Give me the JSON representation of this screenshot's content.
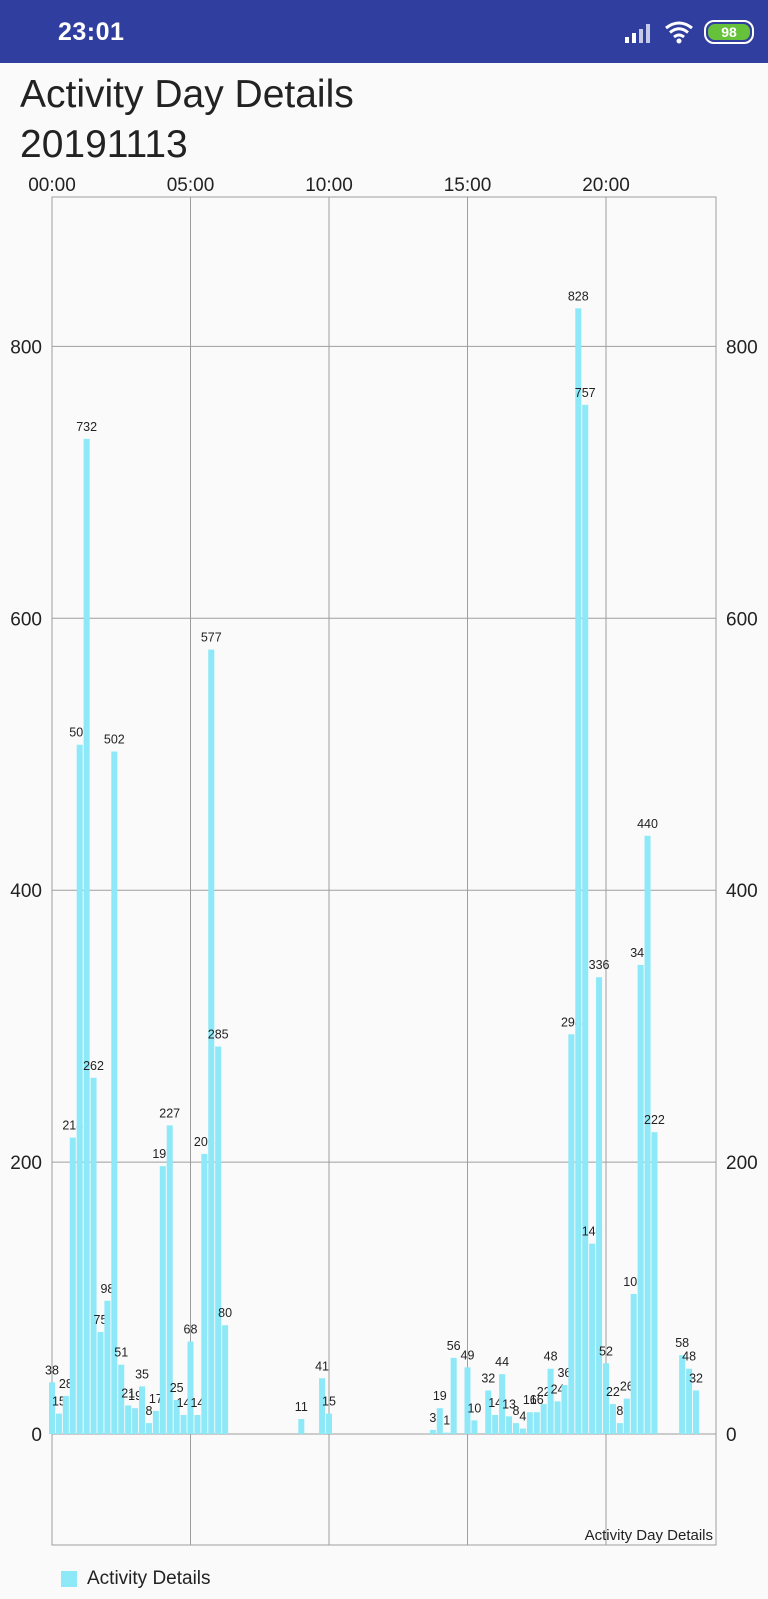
{
  "status_bar": {
    "time": "23:01",
    "battery": "98",
    "icons": [
      "signal-icon",
      "wifi-icon",
      "battery-icon"
    ]
  },
  "header": {
    "title": "Activity Day Details",
    "date": "20191113"
  },
  "legend": {
    "label": "Activity Details",
    "color": "#8de8f8"
  },
  "chart_data": {
    "type": "bar",
    "description": "Activity Day Details",
    "x_unit": "hour of day",
    "xlim": [
      0,
      24
    ],
    "ylim": [
      -80,
      890
    ],
    "x_ticks": [
      "00:00",
      "05:00",
      "10:00",
      "15:00",
      "20:00"
    ],
    "y_ticks": [
      "0",
      "200",
      "400",
      "600",
      "800"
    ],
    "bar_color": "#8de8f8",
    "series": [
      {
        "name": "Activity Details",
        "points": [
          {
            "x": 0.0,
            "y": 38
          },
          {
            "x": 0.25,
            "y": 15
          },
          {
            "x": 0.5,
            "y": 28
          },
          {
            "x": 0.75,
            "y": 218
          },
          {
            "x": 1.0,
            "y": 507
          },
          {
            "x": 1.25,
            "y": 732
          },
          {
            "x": 1.5,
            "y": 262
          },
          {
            "x": 1.75,
            "y": 75
          },
          {
            "x": 2.0,
            "y": 98
          },
          {
            "x": 2.25,
            "y": 502
          },
          {
            "x": 2.5,
            "y": 51
          },
          {
            "x": 2.75,
            "y": 21
          },
          {
            "x": 3.0,
            "y": 19
          },
          {
            "x": 3.25,
            "y": 35
          },
          {
            "x": 3.5,
            "y": 8
          },
          {
            "x": 3.75,
            "y": 17
          },
          {
            "x": 4.0,
            "y": 197
          },
          {
            "x": 4.25,
            "y": 227
          },
          {
            "x": 4.5,
            "y": 25
          },
          {
            "x": 4.75,
            "y": 14
          },
          {
            "x": 5.0,
            "y": 68
          },
          {
            "x": 5.25,
            "y": 14
          },
          {
            "x": 5.5,
            "y": 206
          },
          {
            "x": 5.75,
            "y": 577
          },
          {
            "x": 6.0,
            "y": 285
          },
          {
            "x": 6.25,
            "y": 80
          },
          {
            "x": 9.0,
            "y": 11
          },
          {
            "x": 9.75,
            "y": 41
          },
          {
            "x": 10.0,
            "y": 15
          },
          {
            "x": 13.75,
            "y": 3
          },
          {
            "x": 14.0,
            "y": 19
          },
          {
            "x": 14.25,
            "y": 1
          },
          {
            "x": 14.5,
            "y": 56
          },
          {
            "x": 15.0,
            "y": 49
          },
          {
            "x": 15.25,
            "y": 10
          },
          {
            "x": 15.75,
            "y": 32
          },
          {
            "x": 16.0,
            "y": 14
          },
          {
            "x": 16.25,
            "y": 44
          },
          {
            "x": 16.5,
            "y": 13
          },
          {
            "x": 16.75,
            "y": 8
          },
          {
            "x": 17.0,
            "y": 4
          },
          {
            "x": 17.25,
            "y": 16
          },
          {
            "x": 17.5,
            "y": 16
          },
          {
            "x": 17.75,
            "y": 22
          },
          {
            "x": 18.0,
            "y": 48
          },
          {
            "x": 18.25,
            "y": 24
          },
          {
            "x": 18.5,
            "y": 36
          },
          {
            "x": 18.75,
            "y": 294
          },
          {
            "x": 19.0,
            "y": 828
          },
          {
            "x": 19.25,
            "y": 757
          },
          {
            "x": 19.5,
            "y": 140
          },
          {
            "x": 19.75,
            "y": 336
          },
          {
            "x": 20.0,
            "y": 52
          },
          {
            "x": 20.25,
            "y": 22
          },
          {
            "x": 20.5,
            "y": 8
          },
          {
            "x": 20.75,
            "y": 26
          },
          {
            "x": 21.0,
            "y": 103
          },
          {
            "x": 21.25,
            "y": 345
          },
          {
            "x": 21.5,
            "y": 440
          },
          {
            "x": 21.75,
            "y": 222
          },
          {
            "x": 22.75,
            "y": 58
          },
          {
            "x": 23.0,
            "y": 48
          },
          {
            "x": 23.25,
            "y": 32
          }
        ]
      }
    ],
    "grid": true,
    "legend_position": "bottom-left"
  }
}
